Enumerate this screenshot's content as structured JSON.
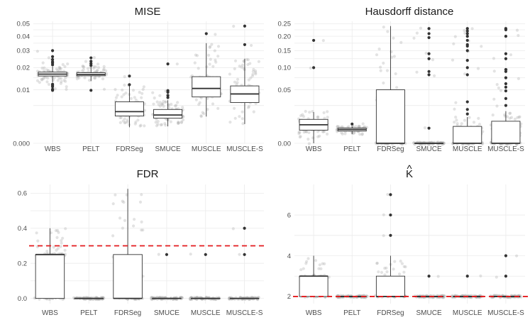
{
  "chart_data": [
    {
      "type": "boxplot",
      "title": "MISE",
      "scale": "sqrt",
      "categories": [
        "WBS",
        "PELT",
        "FDRSeg",
        "SMUCE",
        "MUSCLE",
        "MUSCLE-S"
      ],
      "yticks": [
        0.0,
        0.01,
        0.02,
        0.03,
        0.04,
        0.05
      ],
      "ytick_labels": [
        "0.000",
        "0.01",
        "0.02",
        "0.03",
        "0.04",
        "0.05"
      ],
      "ylim": [
        0,
        0.052
      ],
      "boxes": [
        {
          "q1": 0.0158,
          "median": 0.0167,
          "q3": 0.0177,
          "lo": 0.013,
          "hi": 0.0205,
          "outliers": [
            0.0098,
            0.0102,
            0.0112,
            0.0118,
            0.0122,
            0.0215,
            0.0225,
            0.0232,
            0.0245,
            0.0262,
            0.03
          ]
        },
        {
          "q1": 0.0159,
          "median": 0.0165,
          "q3": 0.0174,
          "lo": 0.0135,
          "hi": 0.0205,
          "outliers": [
            0.0098,
            0.0212,
            0.0222,
            0.0235,
            0.0255
          ]
        },
        {
          "q1": 0.0026,
          "median": 0.0035,
          "q3": 0.006,
          "lo": 0.0009,
          "hi": 0.0115,
          "outliers": [
            0.012,
            0.0158
          ]
        },
        {
          "q1": 0.0022,
          "median": 0.0028,
          "q3": 0.004,
          "lo": 0.001,
          "hi": 0.0065,
          "outliers": [
            0.0073,
            0.008,
            0.0091,
            0.0097,
            0.022
          ]
        },
        {
          "q1": 0.0075,
          "median": 0.0105,
          "q3": 0.0155,
          "lo": 0.0025,
          "hi": 0.035,
          "outliers": [
            0.042
          ]
        },
        {
          "q1": 0.0058,
          "median": 0.0085,
          "q3": 0.0115,
          "lo": 0.0013,
          "hi": 0.025,
          "outliers": [
            0.034,
            0.048
          ]
        }
      ]
    },
    {
      "type": "boxplot",
      "title": "Hausdorff distance",
      "scale": "sqrt",
      "categories": [
        "WBS",
        "PELT",
        "FDRSeg",
        "SMUCE",
        "MUSCLE",
        "MUSCLE-S"
      ],
      "yticks": [
        0.0,
        0.05,
        0.1,
        0.15,
        0.2,
        0.25
      ],
      "ytick_labels": [
        "0.00",
        "0.05",
        "0.10",
        "0.15",
        "0.20",
        "0.25"
      ],
      "ylim": [
        0,
        0.26
      ],
      "boxes": [
        {
          "q1": 0.003,
          "median": 0.006,
          "q3": 0.01,
          "lo": 0.0,
          "hi": 0.017,
          "outliers": [
            0.1,
            0.185
          ]
        },
        {
          "q1": 0.0026,
          "median": 0.0033,
          "q3": 0.004,
          "lo": 0.0015,
          "hi": 0.005,
          "outliers": [
            0.0065
          ]
        },
        {
          "q1": 0.0,
          "median": 0.0,
          "q3": 0.05,
          "lo": 0.0,
          "hi": 0.24,
          "outliers": []
        },
        {
          "q1": 0.0,
          "median": 0.0,
          "q3": 0.0,
          "lo": 0.0,
          "hi": 0.0,
          "outliers": [
            0.004,
            0.082,
            0.09,
            0.125,
            0.14,
            0.195,
            0.21,
            0.23
          ]
        },
        {
          "q1": 0.0,
          "median": 0.0,
          "q3": 0.005,
          "lo": 0.0,
          "hi": 0.012,
          "outliers": [
            0.015,
            0.02,
            0.03,
            0.082,
            0.1,
            0.12,
            0.15,
            0.165,
            0.17,
            0.185,
            0.2,
            0.21,
            0.22,
            0.23
          ]
        },
        {
          "q1": 0.0,
          "median": 0.0,
          "q3": 0.0085,
          "lo": 0.0,
          "hi": 0.018,
          "outliers": [
            0.025,
            0.035,
            0.048,
            0.055,
            0.062,
            0.075,
            0.09,
            0.095,
            0.125,
            0.14,
            0.2,
            0.225,
            0.23
          ]
        }
      ]
    },
    {
      "type": "boxplot",
      "title": "FDR",
      "scale": "linear",
      "categories": [
        "WBS",
        "PELT",
        "FDRSeg",
        "SMUCE",
        "MUSCLE",
        "MUSCLE-S"
      ],
      "yticks": [
        0.0,
        0.2,
        0.4,
        0.6
      ],
      "ytick_labels": [
        "0.0",
        "0.2",
        "0.4",
        "0.6"
      ],
      "ylim": [
        -0.03,
        0.65
      ],
      "reference_line": 0.3,
      "boxes": [
        {
          "q1": 0.0,
          "median": 0.25,
          "q3": 0.25,
          "lo": 0.0,
          "hi": 0.4,
          "outliers": []
        },
        {
          "q1": 0.0,
          "median": 0.0,
          "q3": 0.0,
          "lo": 0.0,
          "hi": 0.0,
          "outliers": []
        },
        {
          "q1": 0.0,
          "median": 0.0,
          "q3": 0.25,
          "lo": 0.0,
          "hi": 0.625,
          "outliers": []
        },
        {
          "q1": 0.0,
          "median": 0.0,
          "q3": 0.0,
          "lo": 0.0,
          "hi": 0.0,
          "outliers": [
            0.25
          ]
        },
        {
          "q1": 0.0,
          "median": 0.0,
          "q3": 0.0,
          "lo": 0.0,
          "hi": 0.0,
          "outliers": [
            0.25
          ]
        },
        {
          "q1": 0.0,
          "median": 0.0,
          "q3": 0.0,
          "lo": 0.0,
          "hi": 0.0,
          "outliers": [
            0.25,
            0.4
          ]
        }
      ]
    },
    {
      "type": "boxplot",
      "title": "K",
      "title_accent": "^",
      "scale": "linear",
      "categories": [
        "WBS",
        "PELT",
        "FDRSeg",
        "SMUCE",
        "MUSCLE",
        "MUSCLE-S"
      ],
      "yticks": [
        2,
        4,
        6
      ],
      "ytick_labels": [
        "2",
        "4",
        "6"
      ],
      "ylim": [
        1.65,
        7.5
      ],
      "reference_line": 2,
      "boxes": [
        {
          "q1": 2,
          "median": 3,
          "q3": 3,
          "lo": 2,
          "hi": 4,
          "outliers": []
        },
        {
          "q1": 2,
          "median": 2,
          "q3": 2,
          "lo": 2,
          "hi": 2,
          "outliers": []
        },
        {
          "q1": 2,
          "median": 2,
          "q3": 3,
          "lo": 2,
          "hi": 4,
          "outliers": [
            5,
            6,
            7
          ]
        },
        {
          "q1": 2,
          "median": 2,
          "q3": 2,
          "lo": 2,
          "hi": 2,
          "outliers": [
            3
          ]
        },
        {
          "q1": 2,
          "median": 2,
          "q3": 2,
          "lo": 2,
          "hi": 2,
          "outliers": [
            3
          ]
        },
        {
          "q1": 2,
          "median": 2,
          "q3": 2,
          "lo": 2,
          "hi": 2,
          "outliers": [
            3,
            4
          ]
        }
      ]
    }
  ]
}
